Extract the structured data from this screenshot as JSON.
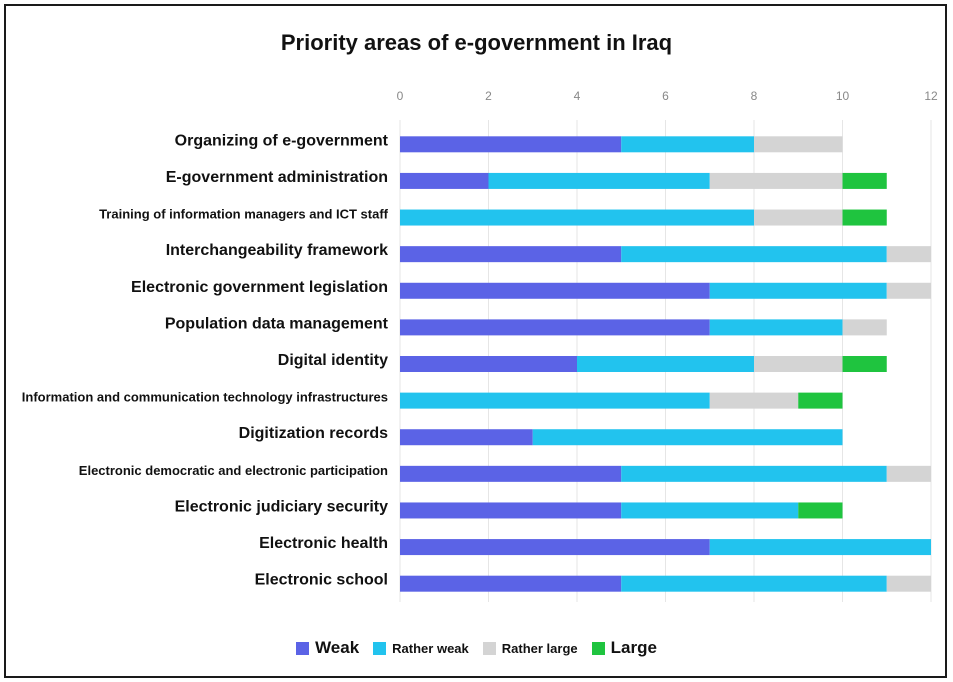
{
  "chart_data": {
    "type": "bar",
    "stacked": true,
    "orientation": "horizontal",
    "title": "Priority areas of e-government in Iraq",
    "xlim": [
      0,
      12
    ],
    "xticks": [
      0,
      2,
      4,
      6,
      8,
      10,
      12
    ],
    "grid": true,
    "legend_position": "bottom",
    "categories": [
      "Organizing of e-government",
      "E-government administration",
      "Training of information managers and ICT staff",
      "Interchangeability framework",
      "Electronic government legislation",
      "Population data management",
      "Digital identity",
      "Information and communication technology infrastructures",
      "Digitization records",
      "Electronic democratic and electronic participation",
      "Electronic judiciary security",
      "Electronic health",
      "Electronic school"
    ],
    "series": [
      {
        "name": "Weak",
        "color": "#5b63e6",
        "values": [
          5,
          2,
          0,
          5,
          7,
          7,
          4,
          0,
          3,
          5,
          5,
          7,
          5
        ]
      },
      {
        "name": "Rather weak",
        "color": "#22c3ee",
        "values": [
          3,
          5,
          8,
          6,
          4,
          3,
          4,
          7,
          7,
          6,
          4,
          5,
          6
        ]
      },
      {
        "name": "Rather large",
        "color": "#d4d4d4",
        "values": [
          2,
          3,
          2,
          1,
          1,
          1,
          2,
          2,
          0,
          1,
          0,
          0,
          1
        ]
      },
      {
        "name": "Large",
        "color": "#1fc43f",
        "values": [
          0,
          1,
          1,
          0,
          0,
          0,
          1,
          1,
          0,
          0,
          1,
          0,
          0
        ]
      }
    ]
  }
}
